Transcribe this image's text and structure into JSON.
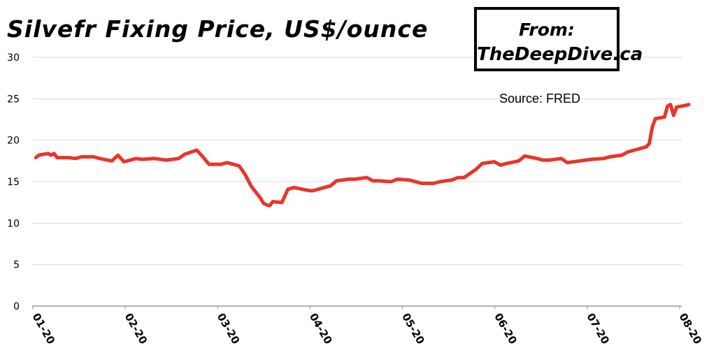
{
  "chart_data": {
    "type": "line",
    "title": "Silvefr Fixing Price, US$/ounce",
    "credit_line1": "From:",
    "credit_line2": "TheDeepDive.ca",
    "source": "Source: FRED",
    "ylim": [
      0,
      30
    ],
    "y_ticks": [
      0,
      5,
      10,
      15,
      20,
      25,
      30
    ],
    "x_ticks": [
      "01-20",
      "02-20",
      "03-20",
      "04-20",
      "05-20",
      "06-20",
      "07-20",
      "08-20"
    ],
    "grid": true,
    "line_color": "#e8352b",
    "series": [
      {
        "x": [
          "2020-01-02",
          "2020-01-03",
          "2020-01-06",
          "2020-01-07",
          "2020-01-08",
          "2020-01-09",
          "2020-01-10",
          "2020-01-13",
          "2020-01-15",
          "2020-01-17",
          "2020-01-21",
          "2020-01-23",
          "2020-01-27",
          "2020-01-29",
          "2020-01-31",
          "2020-02-04",
          "2020-02-06",
          "2020-02-10",
          "2020-02-12",
          "2020-02-14",
          "2020-02-18",
          "2020-02-20",
          "2020-02-24",
          "2020-02-26",
          "2020-02-28",
          "2020-03-03",
          "2020-03-05",
          "2020-03-09",
          "2020-03-11",
          "2020-03-13",
          "2020-03-16",
          "2020-03-17",
          "2020-03-18",
          "2020-03-19",
          "2020-03-20",
          "2020-03-23",
          "2020-03-25",
          "2020-03-27",
          "2020-03-31",
          "2020-04-02",
          "2020-04-06",
          "2020-04-08",
          "2020-04-10",
          "2020-04-14",
          "2020-04-16",
          "2020-04-20",
          "2020-04-22",
          "2020-04-24",
          "2020-04-28",
          "2020-04-30",
          "2020-05-04",
          "2020-05-06",
          "2020-05-08",
          "2020-05-12",
          "2020-05-14",
          "2020-05-18",
          "2020-05-20",
          "2020-05-22",
          "2020-05-26",
          "2020-05-28",
          "2020-06-01",
          "2020-06-03",
          "2020-06-05",
          "2020-06-09",
          "2020-06-11",
          "2020-06-15",
          "2020-06-17",
          "2020-06-19",
          "2020-06-23",
          "2020-06-25",
          "2020-06-29",
          "2020-07-01",
          "2020-07-03",
          "2020-07-07",
          "2020-07-09",
          "2020-07-13",
          "2020-07-15",
          "2020-07-17",
          "2020-07-21",
          "2020-07-22",
          "2020-07-23",
          "2020-07-24",
          "2020-07-27",
          "2020-07-28",
          "2020-07-29",
          "2020-07-30",
          "2020-07-31",
          "2020-08-03",
          "2020-08-04"
        ],
        "y": [
          17.9,
          18.2,
          18.4,
          18.2,
          18.4,
          17.9,
          17.9,
          17.9,
          17.8,
          18.0,
          18.0,
          17.8,
          17.5,
          18.2,
          17.4,
          17.8,
          17.7,
          17.8,
          17.7,
          17.6,
          17.8,
          18.3,
          18.8,
          18.0,
          17.1,
          17.1,
          17.3,
          16.9,
          15.8,
          14.4,
          13.0,
          12.4,
          12.2,
          12.1,
          12.6,
          12.5,
          14.1,
          14.3,
          14.0,
          13.9,
          14.3,
          14.5,
          15.1,
          15.3,
          15.3,
          15.5,
          15.1,
          15.1,
          15.0,
          15.3,
          15.2,
          15.0,
          14.8,
          14.8,
          15.0,
          15.2,
          15.5,
          15.5,
          16.5,
          17.2,
          17.4,
          17.0,
          17.2,
          17.5,
          18.1,
          17.8,
          17.6,
          17.6,
          17.8,
          17.3,
          17.5,
          17.6,
          17.7,
          17.8,
          18.0,
          18.2,
          18.6,
          18.8,
          19.2,
          19.6,
          21.6,
          22.6,
          22.8,
          24.1,
          24.3,
          23.0,
          24.0,
          24.2,
          24.3
        ]
      }
    ]
  }
}
